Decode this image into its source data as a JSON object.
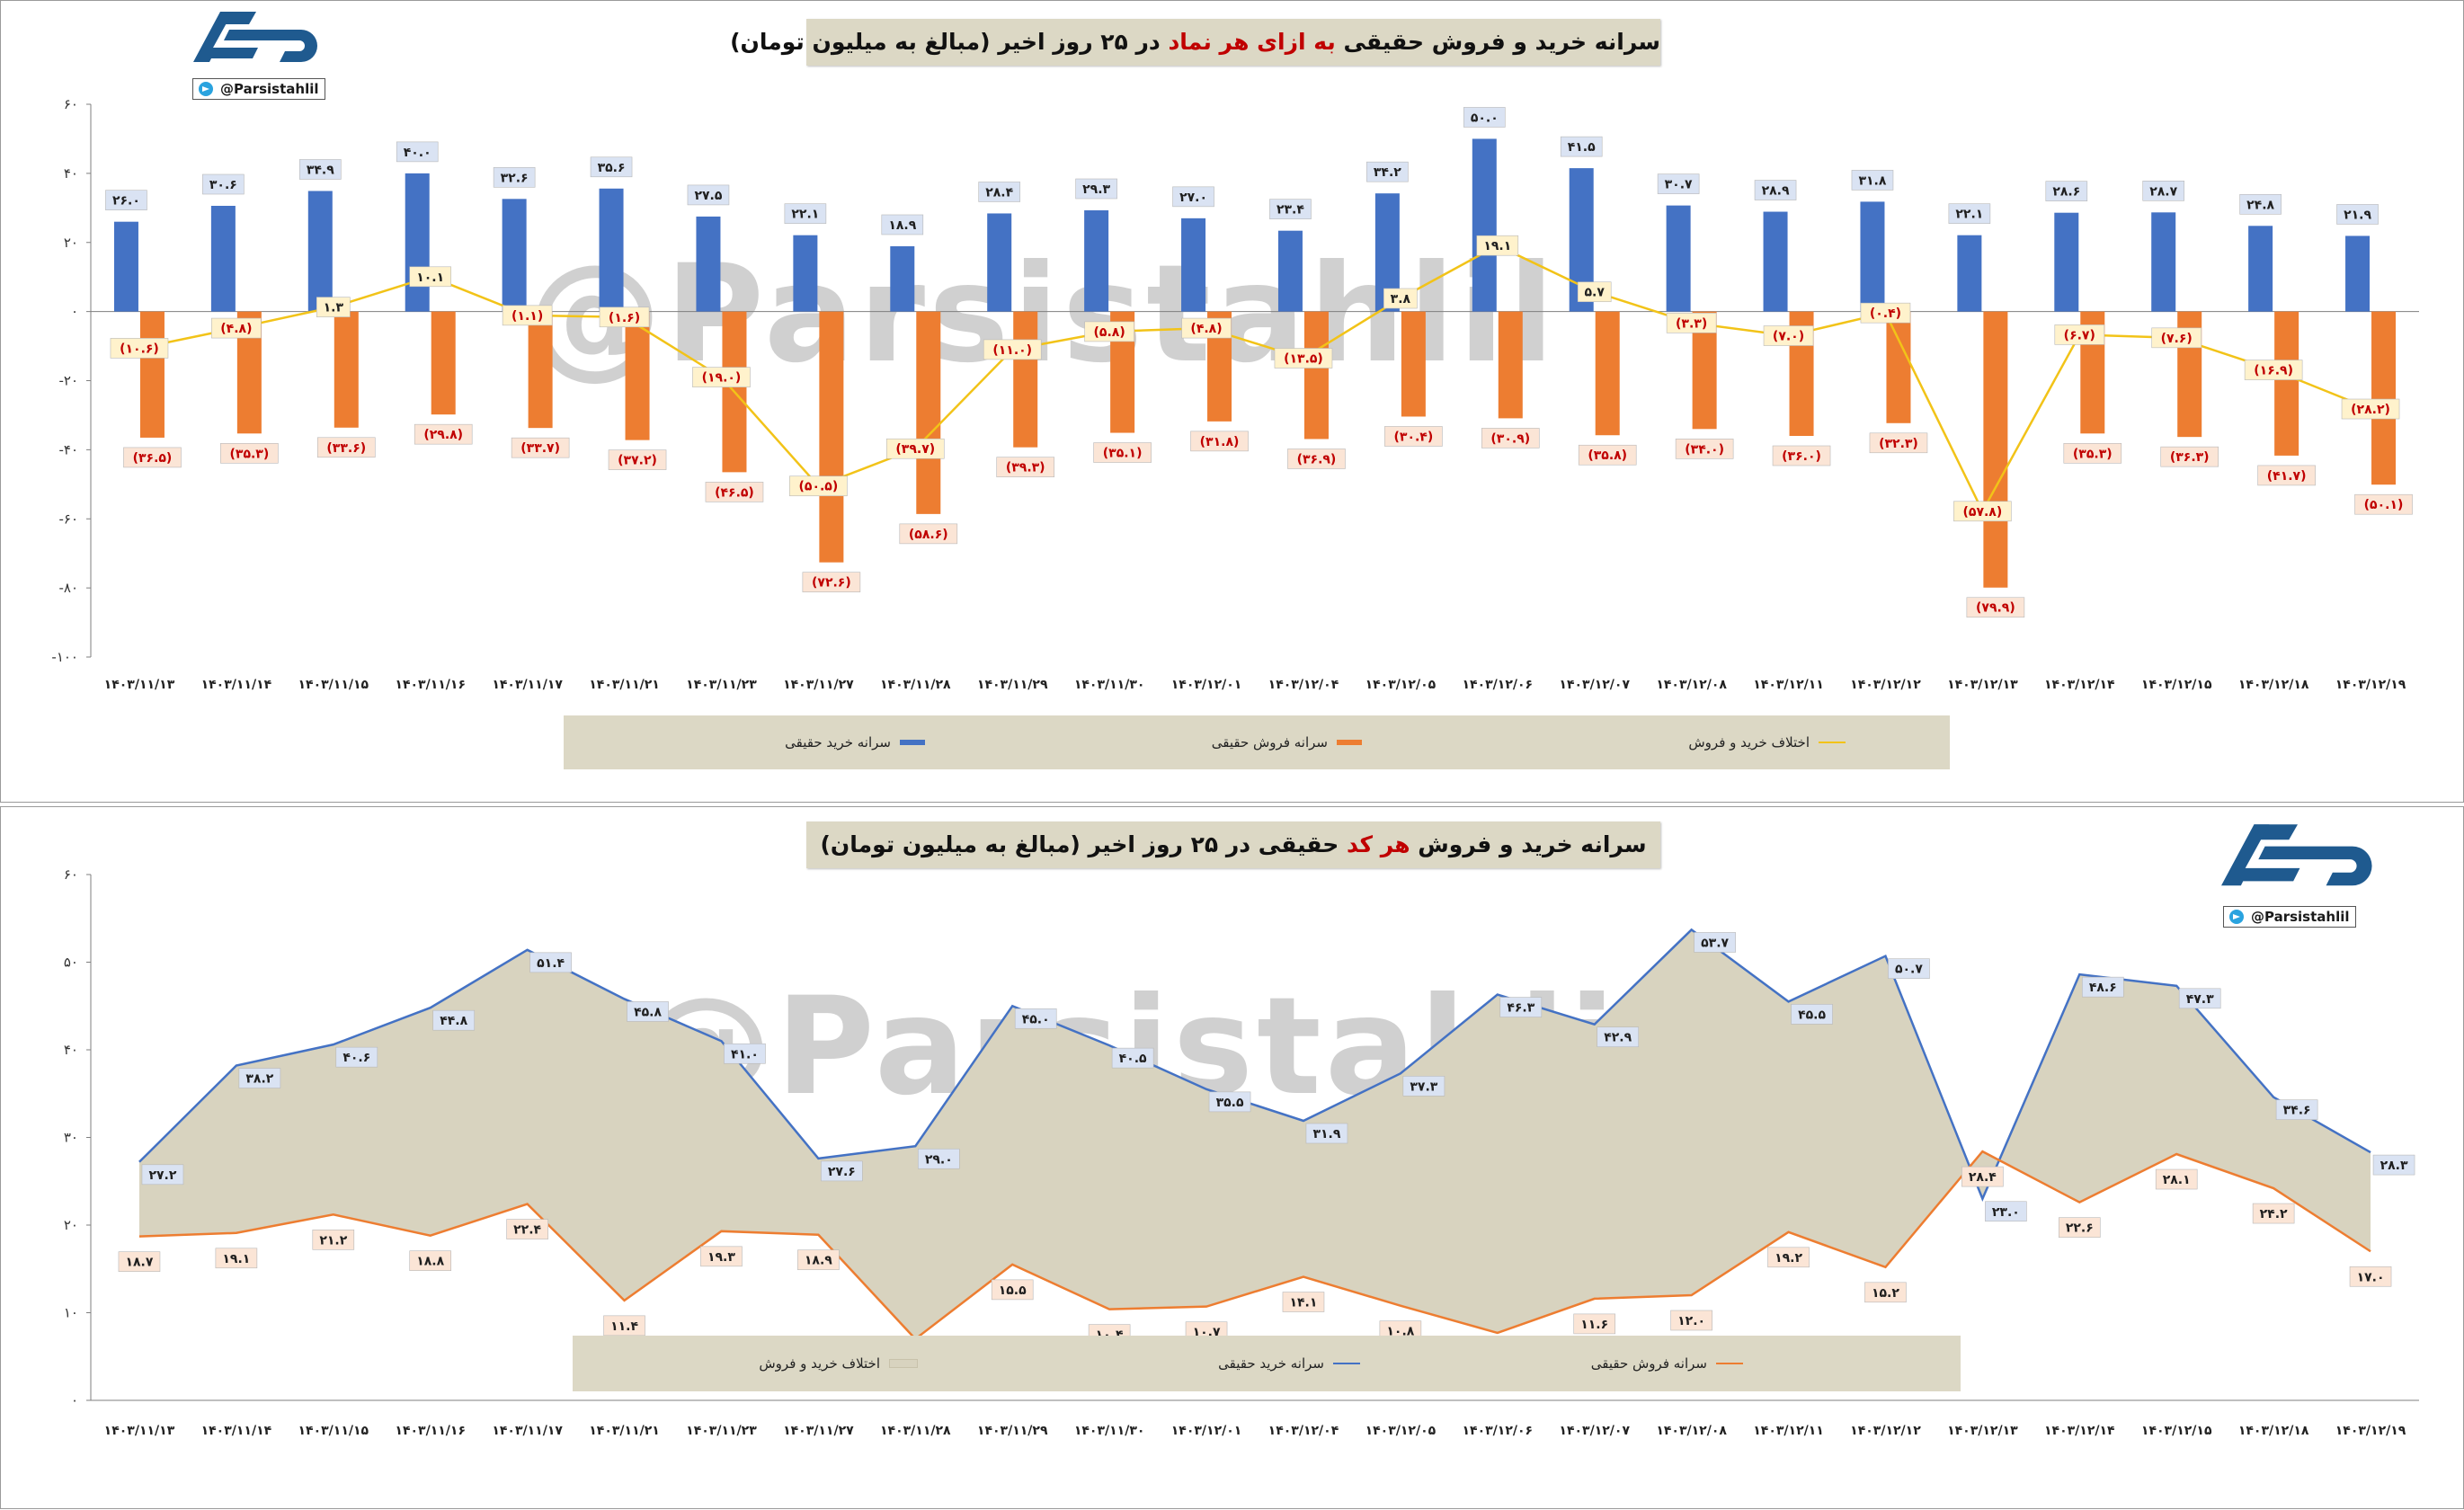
{
  "panel1": {
    "title_pre": "سرانه خرید و فروش حقیقی ",
    "title_highlight": "به ازای هر نماد",
    "title_post": " در ۲۵ روز اخیر (مبالغ به میلیون تومان)",
    "handle": "@Parsistahlil",
    "watermark": "@Parsistahlil",
    "legend": {
      "buy": "سرانه خرید حقیقی",
      "sell": "سرانه فروش حقیقی",
      "diff": "اختلاف خرید و فروش"
    }
  },
  "panel2": {
    "title_pre": "سرانه خرید و فروش ",
    "title_highlight": "هر کد",
    "title_post": " حقیقی در ۲۵ روز اخیر (مبالغ به میلیون تومان)",
    "handle": "@Parsistahlil",
    "watermark": "@Parsistahlil",
    "legend": {
      "diff": "اختلاف خرید و فروش",
      "buy": "سرانه خرید حقیقی",
      "sell": "سرانه فروش حقیقی"
    }
  },
  "colors": {
    "buy": "#4472c4",
    "sell": "#ed7d31",
    "diff": "#f2c318",
    "area": "#d8d3bf",
    "label_bg": "#dae3f3",
    "label_bg_sell": "#fbe5d6",
    "label_bg_diff": "#fff2cc",
    "label_red": "#c00000"
  },
  "chart_data": [
    {
      "type": "bar",
      "categories": [
        "۱۴۰۳/۱۱/۱۳",
        "۱۴۰۳/۱۱/۱۴",
        "۱۴۰۳/۱۱/۱۵",
        "۱۴۰۳/۱۱/۱۶",
        "۱۴۰۳/۱۱/۱۷",
        "۱۴۰۳/۱۱/۲۱",
        "۱۴۰۳/۱۱/۲۳",
        "۱۴۰۳/۱۱/۲۷",
        "۱۴۰۳/۱۱/۲۸",
        "۱۴۰۳/۱۱/۲۹",
        "۱۴۰۳/۱۱/۳۰",
        "۱۴۰۳/۱۲/۰۱",
        "۱۴۰۳/۱۲/۰۴",
        "۱۴۰۳/۱۲/۰۵",
        "۱۴۰۳/۱۲/۰۶",
        "۱۴۰۳/۱۲/۰۷",
        "۱۴۰۳/۱۲/۰۸",
        "۱۴۰۳/۱۲/۱۱",
        "۱۴۰۳/۱۲/۱۲",
        "۱۴۰۳/۱۲/۱۳",
        "۱۴۰۳/۱۲/۱۴",
        "۱۴۰۳/۱۲/۱۵",
        "۱۴۰۳/۱۲/۱۸",
        "۱۴۰۳/۱۲/۱۹"
      ],
      "series": [
        {
          "name": "سرانه خرید حقیقی",
          "type": "bar",
          "values": [
            26.0,
            30.6,
            34.9,
            40.0,
            32.6,
            35.6,
            27.5,
            22.1,
            18.9,
            28.4,
            29.3,
            27.0,
            23.4,
            34.2,
            50.0,
            41.5,
            30.7,
            28.9,
            31.8,
            22.1,
            28.6,
            28.7,
            24.8,
            21.9
          ],
          "labels": [
            "۲۶.۰",
            "۳۰.۶",
            "۳۴.۹",
            "۴۰.۰",
            "۳۲.۶",
            "۳۵.۶",
            "۲۷.۵",
            "۲۲.۱",
            "۱۸.۹",
            "۲۸.۴",
            "۲۹.۳",
            "۲۷.۰",
            "۲۳.۴",
            "۳۴.۲",
            "۵۰.۰",
            "۴۱.۵",
            "۳۰.۷",
            "۲۸.۹",
            "۳۱.۸",
            "۲۲.۱",
            "۲۸.۶",
            "۲۸.۷",
            "۲۴.۸",
            "۲۱.۹"
          ]
        },
        {
          "name": "سرانه فروش حقیقی",
          "type": "bar",
          "values": [
            -36.5,
            -35.3,
            -33.6,
            -29.8,
            -33.7,
            -37.2,
            -46.5,
            -72.6,
            -58.6,
            -39.3,
            -35.1,
            -31.8,
            -36.9,
            -30.4,
            -30.9,
            -35.8,
            -34.0,
            -36.0,
            -32.3,
            -79.9,
            -35.3,
            -36.3,
            -41.7,
            -50.1
          ],
          "labels": [
            "(۳۶.۵)",
            "(۳۵.۳)",
            "(۳۳.۶)",
            "(۲۹.۸)",
            "(۳۳.۷)",
            "(۳۷.۲)",
            "(۴۶.۵)",
            "(۷۲.۶)",
            "(۵۸.۶)",
            "(۳۹.۳)",
            "(۳۵.۱)",
            "(۳۱.۸)",
            "(۳۶.۹)",
            "(۳۰.۴)",
            "(۳۰.۹)",
            "(۳۵.۸)",
            "(۳۴.۰)",
            "(۳۶.۰)",
            "(۳۲.۳)",
            "(۷۹.۹)",
            "(۳۵.۳)",
            "(۳۶.۳)",
            "(۴۱.۷)",
            "(۵۰.۱)"
          ]
        },
        {
          "name": "اختلاف خرید و فروش",
          "type": "line",
          "values": [
            -10.6,
            -4.8,
            1.3,
            10.1,
            -1.1,
            -1.6,
            -19.0,
            -50.5,
            -39.7,
            -11.0,
            -5.8,
            -4.8,
            -13.5,
            3.8,
            19.1,
            5.7,
            -3.3,
            -7.0,
            -0.4,
            -57.8,
            -6.7,
            -7.6,
            -16.9,
            -28.2
          ],
          "labels": [
            "(۱۰.۶)",
            "(۴.۸)",
            "۱.۳",
            "۱۰.۱",
            "(۱.۱)",
            "(۱.۶)",
            "(۱۹.۰)",
            "(۵۰.۵)",
            "(۳۹.۷)",
            "(۱۱.۰)",
            "(۵.۸)",
            "(۴.۸)",
            "(۱۳.۵)",
            "۳.۸",
            "۱۹.۱",
            "۵.۷",
            "(۳.۳)",
            "(۷.۰)",
            "(۰.۴)",
            "(۵۷.۸)",
            "(۶.۷)",
            "(۷.۶)",
            "(۱۶.۹)",
            "(۲۸.۲)"
          ]
        }
      ],
      "yticks": [
        "۶۰",
        "۴۰",
        "۲۰",
        "۰",
        "-۲۰",
        "-۴۰",
        "-۶۰",
        "-۸۰",
        "-۱۰۰"
      ],
      "ylim": [
        -100,
        60
      ],
      "legend_position": "bottom"
    },
    {
      "type": "area",
      "categories": [
        "۱۴۰۳/۱۱/۱۳",
        "۱۴۰۳/۱۱/۱۴",
        "۱۴۰۳/۱۱/۱۵",
        "۱۴۰۳/۱۱/۱۶",
        "۱۴۰۳/۱۱/۱۷",
        "۱۴۰۳/۱۱/۲۱",
        "۱۴۰۳/۱۱/۲۳",
        "۱۴۰۳/۱۱/۲۷",
        "۱۴۰۳/۱۱/۲۸",
        "۱۴۰۳/۱۱/۲۹",
        "۱۴۰۳/۱۱/۳۰",
        "۱۴۰۳/۱۲/۰۱",
        "۱۴۰۳/۱۲/۰۴",
        "۱۴۰۳/۱۲/۰۵",
        "۱۴۰۳/۱۲/۰۶",
        "۱۴۰۳/۱۲/۰۷",
        "۱۴۰۳/۱۲/۰۸",
        "۱۴۰۳/۱۲/۱۱",
        "۱۴۰۳/۱۲/۱۲",
        "۱۴۰۳/۱۲/۱۳",
        "۱۴۰۳/۱۲/۱۴",
        "۱۴۰۳/۱۲/۱۵",
        "۱۴۰۳/۱۲/۱۸",
        "۱۴۰۳/۱۲/۱۹"
      ],
      "series": [
        {
          "name": "سرانه خرید حقیقی",
          "type": "line",
          "values": [
            27.2,
            38.2,
            40.6,
            44.8,
            51.4,
            45.8,
            41.0,
            27.6,
            29.0,
            45.0,
            40.5,
            35.5,
            31.9,
            37.3,
            46.3,
            42.9,
            53.7,
            45.5,
            50.7,
            23.0,
            48.6,
            47.3,
            34.6,
            28.3
          ],
          "labels": [
            "۲۷.۲",
            "۳۸.۲",
            "۴۰.۶",
            "۴۴.۸",
            "۵۱.۴",
            "۴۵.۸",
            "۴۱.۰",
            "۲۷.۶",
            "۲۹.۰",
            "۴۵.۰",
            "۴۰.۵",
            "۳۵.۵",
            "۳۱.۹",
            "۳۷.۳",
            "۴۶.۳",
            "۴۲.۹",
            "۵۳.۷",
            "۴۵.۵",
            "۵۰.۷",
            "۲۳.۰",
            "۴۸.۶",
            "۴۷.۳",
            "۳۴.۶",
            "۲۸.۳"
          ]
        },
        {
          "name": "سرانه فروش حقیقی",
          "type": "line",
          "values": [
            18.7,
            19.1,
            21.2,
            18.8,
            22.4,
            11.4,
            19.3,
            18.9,
            7.0,
            15.5,
            10.4,
            10.7,
            14.1,
            10.8,
            7.7,
            11.6,
            12.0,
            19.2,
            15.2,
            28.4,
            22.6,
            28.1,
            24.2,
            17.0
          ],
          "labels": [
            "۱۸.۷",
            "۱۹.۱",
            "۲۱.۲",
            "۱۸.۸",
            "۲۲.۴",
            "۱۱.۴",
            "۱۹.۳",
            "۱۸.۹",
            "",
            "۱۵.۵",
            "۱۰.۴",
            "۱۰.۷",
            "۱۴.۱",
            "۱۰.۸",
            "",
            "۱۱.۶",
            "۱۲.۰",
            "۱۹.۲",
            "۱۵.۲",
            "۲۸.۴",
            "۲۲.۶",
            "۲۸.۱",
            "۲۴.۲",
            "۱۷.۰"
          ]
        },
        {
          "name": "اختلاف خرید و فروش",
          "type": "area"
        }
      ],
      "yticks": [
        "۶۰",
        "۵۰",
        "۴۰",
        "۳۰",
        "۲۰",
        "۱۰",
        "۰"
      ],
      "ylim": [
        0,
        60
      ],
      "legend_position": "bottom"
    }
  ]
}
